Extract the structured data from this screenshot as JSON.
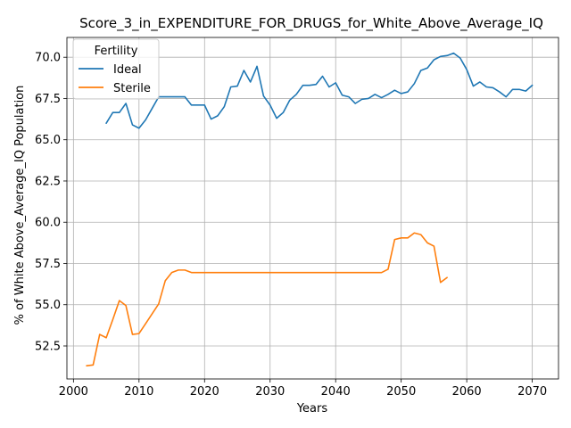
{
  "chart_data": {
    "type": "line",
    "title": "Score_3_in_EXPENDITURE_FOR_DRUGS_for_White_Above_Average_IQ",
    "xlabel": "Years",
    "ylabel": "% of White Above_Average_IQ Population",
    "xlim": [
      1999,
      2074
    ],
    "ylim": [
      50.5,
      71.2
    ],
    "xticks": [
      2000,
      2010,
      2020,
      2030,
      2040,
      2050,
      2060,
      2070
    ],
    "yticks": [
      52.5,
      55.0,
      57.5,
      60.0,
      62.5,
      65.0,
      67.5,
      70.0
    ],
    "xtick_labels": [
      "2000",
      "2010",
      "2020",
      "2030",
      "2040",
      "2050",
      "2060",
      "2070"
    ],
    "ytick_labels": [
      "52.5",
      "55.0",
      "57.5",
      "60.0",
      "62.5",
      "65.0",
      "67.5",
      "70.0"
    ],
    "grid": true,
    "legend": {
      "title": "Fertility",
      "placement": "upper-left"
    },
    "series": [
      {
        "name": "Ideal",
        "color": "#1f77b4",
        "x": [
          2005,
          2006,
          2007,
          2008,
          2009,
          2010,
          2011,
          2012,
          2013,
          2014,
          2015,
          2016,
          2017,
          2018,
          2019,
          2020,
          2021,
          2022,
          2023,
          2024,
          2025,
          2026,
          2027,
          2028,
          2029,
          2030,
          2031,
          2032,
          2033,
          2034,
          2035,
          2036,
          2037,
          2038,
          2039,
          2040,
          2041,
          2042,
          2043,
          2044,
          2045,
          2046,
          2047,
          2048,
          2049,
          2050,
          2051,
          2052,
          2053,
          2054,
          2055,
          2056,
          2057,
          2058,
          2059,
          2060,
          2061,
          2062,
          2063,
          2064,
          2065,
          2066,
          2067,
          2068,
          2069,
          2070
        ],
        "y": [
          66.0,
          66.65,
          66.65,
          67.2,
          65.9,
          65.7,
          66.2,
          66.9,
          67.6,
          67.6,
          67.6,
          67.6,
          67.6,
          67.1,
          67.1,
          67.1,
          66.25,
          66.45,
          67.0,
          68.2,
          68.25,
          69.2,
          68.5,
          69.45,
          67.65,
          67.1,
          66.3,
          66.65,
          67.4,
          67.75,
          68.3,
          68.3,
          68.35,
          68.85,
          68.2,
          68.45,
          67.7,
          67.6,
          67.2,
          67.45,
          67.5,
          67.75,
          67.55,
          67.75,
          68.0,
          67.8,
          67.9,
          68.4,
          69.2,
          69.35,
          69.85,
          70.05,
          70.1,
          70.25,
          69.95,
          69.25,
          68.25,
          68.5,
          68.2,
          68.15,
          67.9,
          67.6,
          68.05,
          68.05,
          67.95,
          68.3
        ]
      },
      {
        "name": "Sterile",
        "color": "#ff7f0e",
        "x": [
          2002,
          2003,
          2004,
          2005,
          2006,
          2007,
          2008,
          2009,
          2010,
          2011,
          2012,
          2013,
          2014,
          2015,
          2016,
          2017,
          2018,
          2019,
          2020,
          2021,
          2022,
          2023,
          2024,
          2025,
          2026,
          2027,
          2028,
          2029,
          2030,
          2031,
          2032,
          2033,
          2034,
          2035,
          2036,
          2037,
          2038,
          2039,
          2040,
          2041,
          2042,
          2043,
          2044,
          2045,
          2046,
          2047,
          2048,
          2049,
          2050,
          2051,
          2052,
          2053,
          2054,
          2055,
          2056,
          2057
        ],
        "y": [
          51.3,
          51.35,
          53.2,
          53.0,
          54.1,
          55.25,
          54.95,
          53.2,
          53.25,
          53.85,
          54.45,
          55.05,
          56.45,
          56.95,
          57.1,
          57.1,
          56.95,
          56.95,
          56.95,
          56.95,
          56.95,
          56.95,
          56.95,
          56.95,
          56.95,
          56.95,
          56.95,
          56.95,
          56.95,
          56.95,
          56.95,
          56.95,
          56.95,
          56.95,
          56.95,
          56.95,
          56.95,
          56.95,
          56.95,
          56.95,
          56.95,
          56.95,
          56.95,
          56.95,
          56.95,
          56.95,
          57.15,
          58.95,
          59.05,
          59.05,
          59.35,
          59.25,
          58.75,
          58.55,
          56.35,
          56.65
        ]
      }
    ]
  }
}
